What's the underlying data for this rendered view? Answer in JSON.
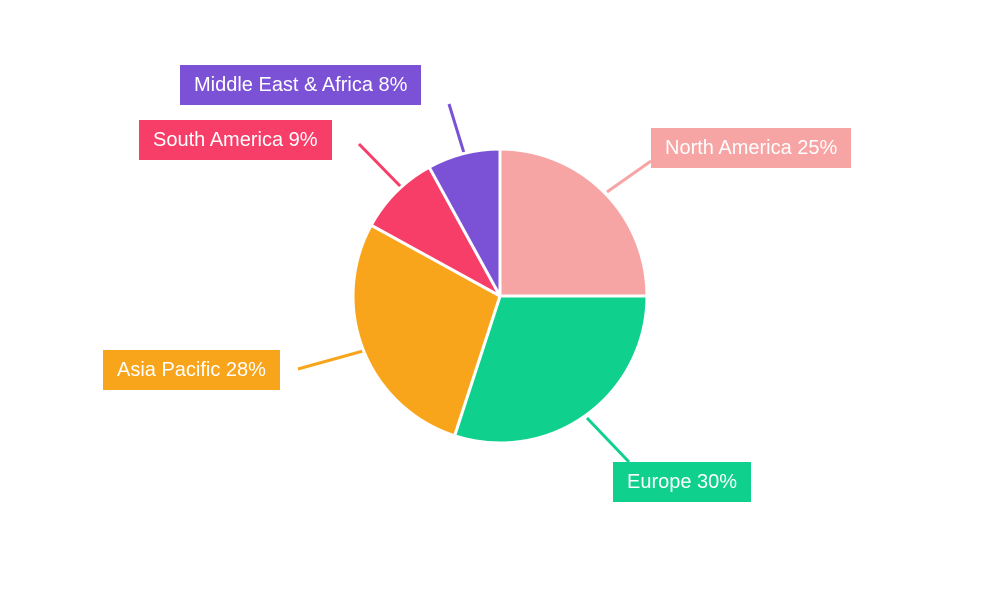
{
  "chart_data": {
    "type": "pie",
    "title": "",
    "categories": [
      "North America",
      "Europe",
      "Asia Pacific",
      "South America",
      "Middle East & Africa"
    ],
    "values": [
      25,
      30,
      28,
      9,
      8
    ],
    "unit": "%",
    "labels": [
      "North America 25%",
      "Europe 30%",
      "Asia Pacific 28%",
      "South America 9%",
      "Middle East & Africa 8%"
    ],
    "colors": [
      "#F7A4A4",
      "#10D08D",
      "#F8A51B",
      "#F63E68",
      "#7B52D6"
    ],
    "start_angle_deg": 0,
    "direction": "clockwise",
    "background": "#FFFFFF",
    "label_text_color": "#FFFFFF",
    "slice_gap_color": "#FFFFFF",
    "legend": "none",
    "grid": false
  }
}
